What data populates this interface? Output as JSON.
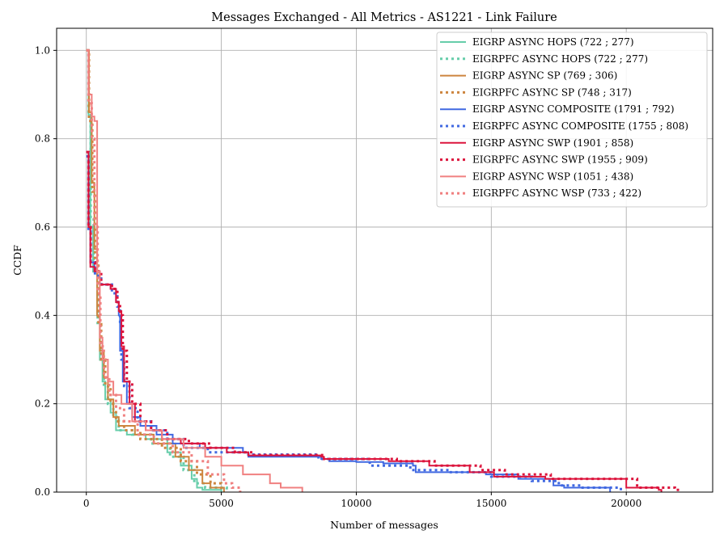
{
  "chart_data": {
    "type": "line",
    "title": "Messages Exchanged - All Metrics - AS1221 - Link Failure",
    "xlabel": "Number of messages",
    "ylabel": "CCDF",
    "xlim": [
      -1100,
      23200
    ],
    "ylim": [
      0,
      1.05
    ],
    "xticks": [
      0,
      5000,
      10000,
      15000,
      20000
    ],
    "xtick_labels": [
      "0",
      "5000",
      "10000",
      "15000",
      "20000"
    ],
    "yticks": [
      0,
      0.2,
      0.4,
      0.6,
      0.8,
      1.0
    ],
    "ytick_labels": [
      "0.0",
      "0.2",
      "0.4",
      "0.6",
      "0.8",
      "1.0"
    ],
    "grid": true,
    "legend_position": "top-right",
    "series": [
      {
        "name": "EIGRP ASYNC HOPS (722 ; 277)",
        "color": "#66cdaa",
        "dash": "solid",
        "points": [
          [
            0,
            1.0
          ],
          [
            80,
            0.85
          ],
          [
            150,
            0.6
          ],
          [
            250,
            0.5
          ],
          [
            400,
            0.4
          ],
          [
            500,
            0.3
          ],
          [
            600,
            0.25
          ],
          [
            700,
            0.21
          ],
          [
            900,
            0.18
          ],
          [
            1100,
            0.14
          ],
          [
            1500,
            0.13
          ],
          [
            2200,
            0.12
          ],
          [
            3000,
            0.09
          ],
          [
            3500,
            0.06
          ],
          [
            3900,
            0.03
          ],
          [
            4100,
            0.01
          ],
          [
            4300,
            0.005
          ],
          [
            5000,
            0
          ]
        ]
      },
      {
        "name": "EIGRPFC ASYNC HOPS (722 ; 277)",
        "color": "#66cdaa",
        "dash": "dotted",
        "points": [
          [
            0,
            1.0
          ],
          [
            80,
            0.86
          ],
          [
            160,
            0.62
          ],
          [
            270,
            0.5
          ],
          [
            420,
            0.38
          ],
          [
            520,
            0.3
          ],
          [
            650,
            0.24
          ],
          [
            800,
            0.2
          ],
          [
            1000,
            0.17
          ],
          [
            1200,
            0.14
          ],
          [
            1700,
            0.13
          ],
          [
            2400,
            0.11
          ],
          [
            3100,
            0.08
          ],
          [
            3600,
            0.05
          ],
          [
            4000,
            0.02
          ],
          [
            4400,
            0.01
          ],
          [
            5200,
            0
          ]
        ]
      },
      {
        "name": "EIGRP ASYNC SP (769 ; 306)",
        "color": "#cd853f",
        "dash": "solid",
        "points": [
          [
            0,
            1.0
          ],
          [
            100,
            0.86
          ],
          [
            200,
            0.7
          ],
          [
            300,
            0.55
          ],
          [
            400,
            0.4
          ],
          [
            500,
            0.32
          ],
          [
            650,
            0.26
          ],
          [
            800,
            0.21
          ],
          [
            1000,
            0.17
          ],
          [
            1200,
            0.15
          ],
          [
            1800,
            0.13
          ],
          [
            2500,
            0.11
          ],
          [
            3300,
            0.08
          ],
          [
            3800,
            0.05
          ],
          [
            4300,
            0.02
          ],
          [
            4600,
            0.01
          ],
          [
            5100,
            0
          ]
        ]
      },
      {
        "name": "EIGRPFC ASYNC SP (748 ; 317)",
        "color": "#cd853f",
        "dash": "dotted",
        "points": [
          [
            0,
            1.0
          ],
          [
            100,
            0.84
          ],
          [
            220,
            0.68
          ],
          [
            320,
            0.52
          ],
          [
            450,
            0.38
          ],
          [
            550,
            0.3
          ],
          [
            700,
            0.24
          ],
          [
            900,
            0.2
          ],
          [
            1100,
            0.16
          ],
          [
            1400,
            0.14
          ],
          [
            2000,
            0.12
          ],
          [
            2800,
            0.1
          ],
          [
            3500,
            0.07
          ],
          [
            4100,
            0.04
          ],
          [
            4600,
            0.02
          ],
          [
            5000,
            0
          ]
        ]
      },
      {
        "name": "EIGRP ASYNC COMPOSITE (1791 ; 792)",
        "color": "#4169e1",
        "dash": "solid",
        "points": [
          [
            0,
            0.77
          ],
          [
            80,
            0.6
          ],
          [
            150,
            0.52
          ],
          [
            300,
            0.5
          ],
          [
            500,
            0.47
          ],
          [
            900,
            0.46
          ],
          [
            1100,
            0.43
          ],
          [
            1200,
            0.4
          ],
          [
            1250,
            0.32
          ],
          [
            1350,
            0.25
          ],
          [
            1500,
            0.2
          ],
          [
            1700,
            0.17
          ],
          [
            2000,
            0.15
          ],
          [
            2600,
            0.13
          ],
          [
            3200,
            0.11
          ],
          [
            4200,
            0.1
          ],
          [
            5800,
            0.09
          ],
          [
            6000,
            0.08
          ],
          [
            8700,
            0.075
          ],
          [
            9000,
            0.07
          ],
          [
            10000,
            0.068
          ],
          [
            11000,
            0.065
          ],
          [
            12100,
            0.06
          ],
          [
            12200,
            0.045
          ],
          [
            14800,
            0.04
          ],
          [
            16000,
            0.03
          ],
          [
            17300,
            0.015
          ],
          [
            17700,
            0.01
          ],
          [
            19400,
            0
          ]
        ]
      },
      {
        "name": "EIGRPFC ASYNC COMPOSITE (1755 ; 808)",
        "color": "#4169e1",
        "dash": "dotted",
        "points": [
          [
            0,
            0.76
          ],
          [
            80,
            0.59
          ],
          [
            160,
            0.52
          ],
          [
            320,
            0.49
          ],
          [
            550,
            0.47
          ],
          [
            950,
            0.45
          ],
          [
            1150,
            0.42
          ],
          [
            1250,
            0.38
          ],
          [
            1300,
            0.3
          ],
          [
            1400,
            0.24
          ],
          [
            1600,
            0.19
          ],
          [
            1900,
            0.16
          ],
          [
            2400,
            0.14
          ],
          [
            3000,
            0.12
          ],
          [
            3600,
            0.1
          ],
          [
            4500,
            0.09
          ],
          [
            6000,
            0.085
          ],
          [
            8600,
            0.075
          ],
          [
            10500,
            0.06
          ],
          [
            12000,
            0.05
          ],
          [
            13500,
            0.045
          ],
          [
            15000,
            0.035
          ],
          [
            16500,
            0.025
          ],
          [
            17500,
            0.015
          ],
          [
            18300,
            0.01
          ],
          [
            19800,
            0
          ]
        ]
      },
      {
        "name": "EIGRP ASYNC SWP (1901 ; 858)",
        "color": "#dc143c",
        "dash": "solid",
        "points": [
          [
            0,
            0.77
          ],
          [
            80,
            0.6
          ],
          [
            150,
            0.51
          ],
          [
            300,
            0.5
          ],
          [
            500,
            0.47
          ],
          [
            900,
            0.46
          ],
          [
            1100,
            0.43
          ],
          [
            1200,
            0.41
          ],
          [
            1300,
            0.33
          ],
          [
            1400,
            0.25
          ],
          [
            1600,
            0.2
          ],
          [
            1800,
            0.16
          ],
          [
            2200,
            0.14
          ],
          [
            2800,
            0.12
          ],
          [
            3500,
            0.11
          ],
          [
            4400,
            0.1
          ],
          [
            5200,
            0.09
          ],
          [
            6000,
            0.083
          ],
          [
            8700,
            0.08
          ],
          [
            8800,
            0.075
          ],
          [
            11200,
            0.07
          ],
          [
            12700,
            0.06
          ],
          [
            14200,
            0.045
          ],
          [
            15100,
            0.035
          ],
          [
            17000,
            0.03
          ],
          [
            20000,
            0.01
          ],
          [
            21200,
            0.005
          ],
          [
            21300,
            0
          ]
        ]
      },
      {
        "name": "EIGRPFC ASYNC SWP (1955 ; 909)",
        "color": "#dc143c",
        "dash": "dotted",
        "points": [
          [
            0,
            0.77
          ],
          [
            80,
            0.6
          ],
          [
            160,
            0.52
          ],
          [
            320,
            0.5
          ],
          [
            550,
            0.47
          ],
          [
            950,
            0.46
          ],
          [
            1150,
            0.43
          ],
          [
            1250,
            0.4
          ],
          [
            1350,
            0.32
          ],
          [
            1500,
            0.25
          ],
          [
            1700,
            0.2
          ],
          [
            2000,
            0.16
          ],
          [
            2400,
            0.14
          ],
          [
            3000,
            0.12
          ],
          [
            3800,
            0.11
          ],
          [
            4600,
            0.1
          ],
          [
            5500,
            0.09
          ],
          [
            6200,
            0.084
          ],
          [
            8800,
            0.075
          ],
          [
            11500,
            0.07
          ],
          [
            12900,
            0.06
          ],
          [
            14600,
            0.05
          ],
          [
            15500,
            0.04
          ],
          [
            17200,
            0.03
          ],
          [
            20400,
            0.01
          ],
          [
            21800,
            0.005
          ],
          [
            22000,
            0
          ]
        ]
      },
      {
        "name": "EIGRP ASYNC WSP (1051 ; 438)",
        "color": "#f08080",
        "dash": "solid",
        "points": [
          [
            0,
            1.0
          ],
          [
            80,
            0.9
          ],
          [
            200,
            0.85
          ],
          [
            300,
            0.84
          ],
          [
            400,
            0.5
          ],
          [
            500,
            0.35
          ],
          [
            600,
            0.3
          ],
          [
            800,
            0.25
          ],
          [
            1000,
            0.22
          ],
          [
            1300,
            0.2
          ],
          [
            1700,
            0.16
          ],
          [
            2200,
            0.14
          ],
          [
            2800,
            0.12
          ],
          [
            3600,
            0.1
          ],
          [
            4400,
            0.08
          ],
          [
            5000,
            0.06
          ],
          [
            5800,
            0.04
          ],
          [
            6800,
            0.02
          ],
          [
            7200,
            0.01
          ],
          [
            8000,
            0
          ]
        ]
      },
      {
        "name": "EIGRPFC ASYNC WSP (733 ; 422)",
        "color": "#f08080",
        "dash": "dotted",
        "points": [
          [
            0,
            1.0
          ],
          [
            80,
            0.88
          ],
          [
            200,
            0.8
          ],
          [
            300,
            0.6
          ],
          [
            420,
            0.45
          ],
          [
            520,
            0.33
          ],
          [
            650,
            0.26
          ],
          [
            850,
            0.22
          ],
          [
            1100,
            0.19
          ],
          [
            1400,
            0.16
          ],
          [
            1900,
            0.13
          ],
          [
            2500,
            0.11
          ],
          [
            3200,
            0.09
          ],
          [
            3900,
            0.07
          ],
          [
            4500,
            0.04
          ],
          [
            5100,
            0.02
          ],
          [
            5400,
            0.01
          ],
          [
            5700,
            0
          ]
        ]
      }
    ]
  }
}
